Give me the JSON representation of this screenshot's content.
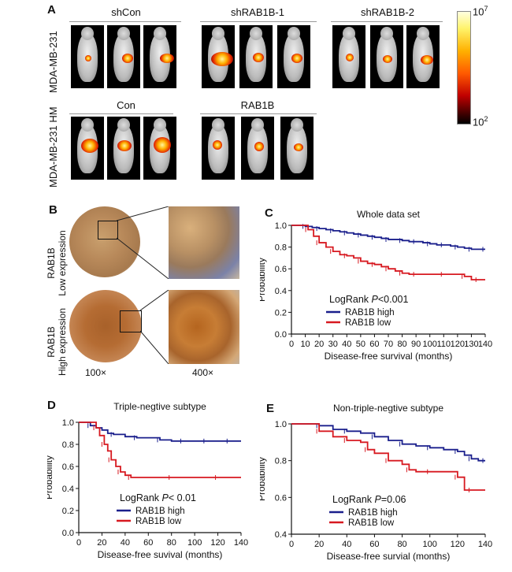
{
  "panelA": {
    "label": "A",
    "row1": {
      "side_label": "MDA-MB-231",
      "groups": [
        "shCon",
        "shRAB1B-1",
        "shRAB1B-2"
      ]
    },
    "row2": {
      "side_label": "MDA-MB-231 HM",
      "groups": [
        "Con",
        "RAB1B"
      ]
    },
    "colorbar": {
      "max_base": "10",
      "max_exp": "7",
      "min_base": "10",
      "min_exp": "2"
    }
  },
  "panelB": {
    "label": "B",
    "row1_label": "RAB1B",
    "row1_sub": "Low  expression",
    "row2_label": "RAB1B",
    "row2_sub": "High expression",
    "mag1": "100×",
    "mag2": "400×"
  },
  "chart_data": [
    {
      "panel": "C",
      "type": "line",
      "title": "Whole data set",
      "xlabel": "Disease-free survival (months)",
      "ylabel": "Probability",
      "xlim": [
        0,
        140
      ],
      "ylim": [
        0,
        1.0
      ],
      "xticks": [
        "0",
        "10",
        "20",
        "30",
        "40",
        "50",
        "60",
        "70",
        "80",
        "90",
        "100",
        "110",
        "120",
        "130",
        "140"
      ],
      "yticks": [
        "0.0",
        "0.2",
        "0.4",
        "0.6",
        "0.8",
        "1.0"
      ],
      "annotation_prefix": "LogRank ",
      "annotation_p": "P",
      "annotation_value": "<0.001",
      "series": [
        {
          "name": "RAB1B high",
          "color": "#1a1f8c",
          "x": [
            0,
            5,
            10,
            15,
            20,
            25,
            30,
            35,
            40,
            45,
            50,
            55,
            60,
            65,
            70,
            75,
            80,
            85,
            90,
            95,
            100,
            105,
            110,
            115,
            120,
            125,
            130,
            135,
            140
          ],
          "y": [
            1.0,
            1.0,
            0.99,
            0.98,
            0.97,
            0.96,
            0.95,
            0.94,
            0.93,
            0.92,
            0.91,
            0.9,
            0.89,
            0.88,
            0.87,
            0.87,
            0.86,
            0.85,
            0.85,
            0.84,
            0.83,
            0.82,
            0.82,
            0.81,
            0.8,
            0.79,
            0.78,
            0.78,
            0.78
          ]
        },
        {
          "name": "RAB1B low",
          "color": "#d71920",
          "x": [
            0,
            8,
            12,
            16,
            20,
            25,
            30,
            35,
            40,
            45,
            50,
            55,
            60,
            65,
            70,
            75,
            80,
            85,
            90,
            100,
            110,
            120,
            125,
            130,
            135,
            140
          ],
          "y": [
            1.0,
            1.0,
            0.96,
            0.9,
            0.84,
            0.8,
            0.76,
            0.73,
            0.72,
            0.7,
            0.67,
            0.65,
            0.64,
            0.62,
            0.6,
            0.58,
            0.56,
            0.55,
            0.55,
            0.55,
            0.55,
            0.55,
            0.53,
            0.5,
            0.5,
            0.5
          ]
        }
      ]
    },
    {
      "panel": "D",
      "type": "line",
      "title": "Triple-negtive subtype",
      "xlabel": "Disease-free suvival (months)",
      "ylabel": "Probability",
      "xlim": [
        0,
        140
      ],
      "ylim": [
        0,
        1.0
      ],
      "xticks": [
        "0",
        "20",
        "40",
        "60",
        "80",
        "100",
        "120",
        "140"
      ],
      "yticks": [
        "0.0",
        "0.2",
        "0.4",
        "0.6",
        "0.8",
        "1.0"
      ],
      "annotation_prefix": "LogRank ",
      "annotation_p": "P",
      "annotation_value": "< 0.01",
      "series": [
        {
          "name": "RAB1B high",
          "color": "#1a1f8c",
          "x": [
            0,
            5,
            10,
            15,
            20,
            25,
            30,
            40,
            50,
            60,
            70,
            80,
            90,
            100,
            110,
            120,
            130,
            140
          ],
          "y": [
            1.0,
            1.0,
            0.97,
            0.95,
            0.93,
            0.9,
            0.89,
            0.87,
            0.86,
            0.86,
            0.84,
            0.83,
            0.83,
            0.83,
            0.83,
            0.83,
            0.83,
            0.83
          ]
        },
        {
          "name": "RAB1B low",
          "color": "#d71920",
          "x": [
            0,
            10,
            15,
            18,
            22,
            25,
            28,
            32,
            36,
            40,
            45,
            60,
            80,
            100,
            120,
            140
          ],
          "y": [
            1.0,
            1.0,
            0.95,
            0.88,
            0.8,
            0.74,
            0.66,
            0.6,
            0.55,
            0.52,
            0.5,
            0.5,
            0.5,
            0.5,
            0.5,
            0.5
          ]
        }
      ]
    },
    {
      "panel": "E",
      "type": "line",
      "title": "Non-triple-negtive subtype",
      "xlabel": "Disease-free survial (months)",
      "ylabel": "Probability",
      "xlim": [
        0,
        140
      ],
      "ylim": [
        0.4,
        1.0
      ],
      "xticks": [
        "0",
        "20",
        "40",
        "60",
        "80",
        "100",
        "120",
        "140"
      ],
      "yticks": [
        "0.4",
        "0.6",
        "0.8",
        "1.0"
      ],
      "annotation_prefix": "LogRank ",
      "annotation_p": "P",
      "annotation_value": "=0.06",
      "series": [
        {
          "name": "RAB1B high",
          "color": "#1a1f8c",
          "x": [
            0,
            10,
            20,
            30,
            40,
            50,
            60,
            70,
            80,
            90,
            100,
            110,
            120,
            125,
            130,
            135,
            140
          ],
          "y": [
            1.0,
            1.0,
            0.99,
            0.97,
            0.96,
            0.95,
            0.93,
            0.91,
            0.89,
            0.88,
            0.87,
            0.86,
            0.85,
            0.83,
            0.81,
            0.8,
            0.8
          ]
        },
        {
          "name": "RAB1B low",
          "color": "#d71920",
          "x": [
            0,
            15,
            20,
            30,
            40,
            50,
            55,
            60,
            70,
            80,
            85,
            90,
            100,
            110,
            120,
            125,
            130,
            140
          ],
          "y": [
            1.0,
            1.0,
            0.96,
            0.93,
            0.91,
            0.9,
            0.86,
            0.84,
            0.8,
            0.78,
            0.75,
            0.74,
            0.74,
            0.74,
            0.71,
            0.64,
            0.64,
            0.64
          ]
        }
      ]
    }
  ]
}
